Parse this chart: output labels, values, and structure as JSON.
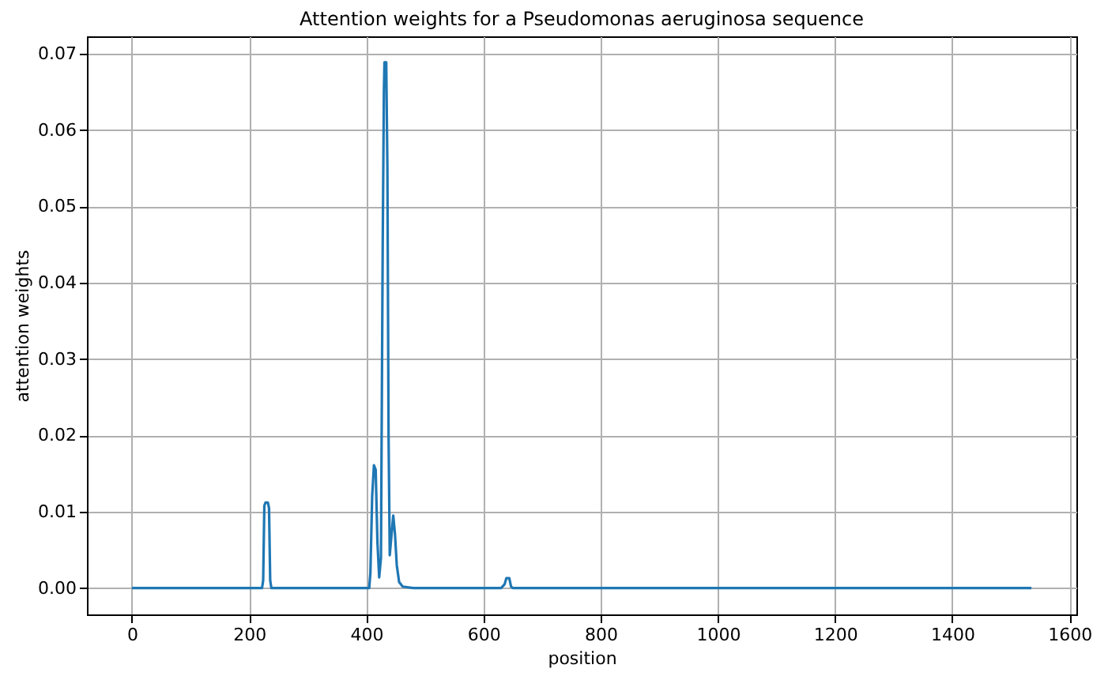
{
  "chart_data": {
    "type": "line",
    "title": "Attention weights for a Pseudomonas aeruginosa sequence",
    "xlabel": "position",
    "ylabel": "attention weights",
    "x": [
      0,
      222,
      224,
      226,
      228,
      232,
      234,
      236,
      238,
      405,
      407,
      410,
      413,
      416,
      419,
      422,
      425,
      428,
      430,
      431,
      434,
      436,
      438,
      440,
      443,
      446,
      449,
      452,
      456,
      462,
      480,
      630,
      636,
      639,
      644,
      647,
      650,
      1535
    ],
    "series": [
      {
        "color": "#1f77b4",
        "values": [
          0,
          0,
          0.001,
          0.0108,
          0.0112,
          0.0112,
          0.0105,
          0.001,
          0,
          0,
          0.002,
          0.012,
          0.0161,
          0.0155,
          0.006,
          0.0014,
          0.004,
          0.045,
          0.065,
          0.0689,
          0.0689,
          0.055,
          0.02,
          0.0043,
          0.007,
          0.0095,
          0.007,
          0.003,
          0.0008,
          0.0002,
          0,
          0,
          0.0005,
          0.0013,
          0.0013,
          0.0002,
          0,
          0
        ]
      }
    ],
    "xlim": [
      -76.75,
      1611.75
    ],
    "ylim": [
      -0.00345,
      0.0723
    ],
    "xticks": [
      0,
      200,
      400,
      600,
      800,
      1000,
      1200,
      1400,
      1600
    ],
    "yticks": [
      {
        "value": 0,
        "label": "0.00"
      },
      {
        "value": 0.01,
        "label": "0.01"
      },
      {
        "value": 0.02,
        "label": "0.02"
      },
      {
        "value": 0.03,
        "label": "0.03"
      },
      {
        "value": 0.04,
        "label": "0.04"
      },
      {
        "value": 0.05,
        "label": "0.05"
      },
      {
        "value": 0.06,
        "label": "0.06"
      },
      {
        "value": 0.07,
        "label": "0.07"
      }
    ],
    "grid": true,
    "marker": "none",
    "line_style": "solid"
  }
}
